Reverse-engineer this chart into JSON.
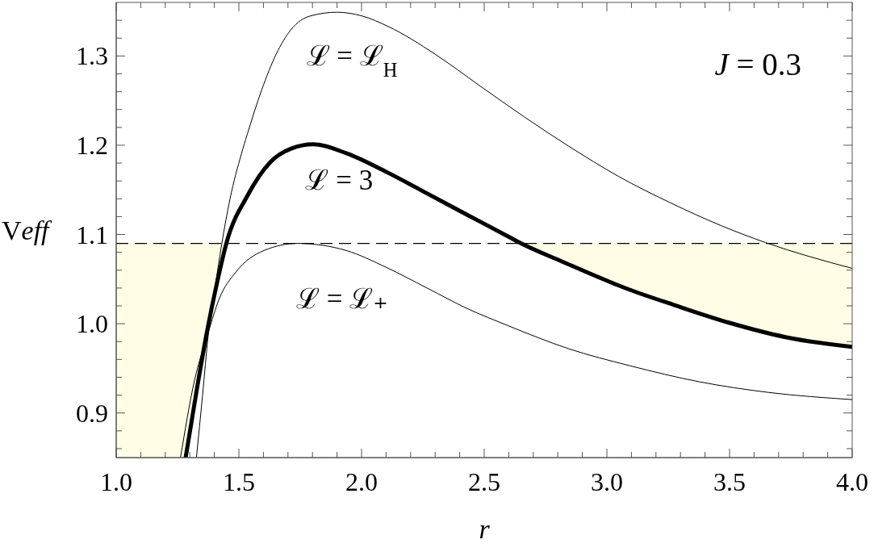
{
  "chart_data": {
    "type": "line",
    "xlabel": "r",
    "ylabel": "Veff",
    "annotations": [
      "J = 0.3"
    ],
    "xlim": [
      1,
      4
    ],
    "ylim": [
      0.85,
      1.36
    ],
    "xticks": [
      {
        "value": 1,
        "label": "1.0"
      },
      {
        "value": 1.1,
        "label": null
      },
      {
        "value": 1.2,
        "label": null
      },
      {
        "value": 1.3,
        "label": null
      },
      {
        "value": 1.4,
        "label": null
      },
      1.5,
      {
        "value": 1.6,
        "label": null
      },
      {
        "value": 1.7,
        "label": null
      },
      {
        "value": 1.8,
        "label": null
      },
      {
        "value": 1.9,
        "label": null
      },
      {
        "value": 2,
        "label": "2.0"
      },
      {
        "value": 2.1,
        "label": null
      },
      {
        "value": 2.2,
        "label": null
      },
      {
        "value": 2.3,
        "label": null
      },
      {
        "value": 2.4,
        "label": null
      },
      2.5,
      {
        "value": 2.6,
        "label": null
      },
      {
        "value": 2.7,
        "label": null
      },
      {
        "value": 2.8,
        "label": null
      },
      {
        "value": 2.9,
        "label": null
      },
      {
        "value": 3,
        "label": "3.0"
      },
      {
        "value": 3.1,
        "label": null
      },
      {
        "value": 3.2,
        "label": null
      },
      {
        "value": 3.3,
        "label": null
      },
      {
        "value": 3.4,
        "label": null
      },
      3.5,
      {
        "value": 3.6,
        "label": null
      },
      {
        "value": 3.7,
        "label": null
      },
      {
        "value": 3.8,
        "label": null
      },
      {
        "value": 3.9,
        "label": null
      },
      {
        "value": 4,
        "label": "4.0"
      }
    ],
    "yticks": [
      {
        "value": 0.86,
        "label": null
      },
      {
        "value": 0.88,
        "label": null
      },
      0.9,
      {
        "value": 0.92,
        "label": null
      },
      {
        "value": 0.94,
        "label": null
      },
      {
        "value": 0.96,
        "label": null
      },
      {
        "value": 0.98,
        "label": null
      },
      {
        "value": 1,
        "label": "1.0"
      },
      {
        "value": 1.02,
        "label": null
      },
      {
        "value": 1.04,
        "label": null
      },
      {
        "value": 1.06,
        "label": null
      },
      {
        "value": 1.08,
        "label": null
      },
      1.1,
      {
        "value": 1.12,
        "label": null
      },
      {
        "value": 1.14,
        "label": null
      },
      {
        "value": 1.16,
        "label": null
      },
      {
        "value": 1.18,
        "label": null
      },
      1.2,
      {
        "value": 1.22,
        "label": null
      },
      {
        "value": 1.24,
        "label": null
      },
      {
        "value": 1.26,
        "label": null
      },
      {
        "value": 1.28,
        "label": null
      },
      1.3,
      {
        "value": 1.32,
        "label": null
      },
      {
        "value": 1.34,
        "label": null
      }
    ],
    "marker": "none",
    "line_style": "solid",
    "ref_lines": [
      {
        "axis": "y",
        "value": 1.09,
        "color": "#000000",
        "line_style": "dashed"
      }
    ],
    "series": [
      {
        "type": "area",
        "color": "#fffde6",
        "x": [
          1,
          1.283,
          1.329,
          1.37,
          1.411,
          1.449
        ],
        "values": [
          null,
          null,
          null,
          null,
          null,
          null
        ],
        "lower": [
          0.85,
          0.85,
          0.927,
          0.991,
          1.046,
          1.09
        ],
        "upper": [
          1.09,
          1.09,
          1.09,
          1.09,
          1.09,
          1.09
        ]
      },
      {
        "type": "area",
        "color": "#fffde6",
        "x": [
          2.65,
          2.815,
          3.084,
          3.274,
          3.5,
          3.728,
          4
        ],
        "values": [
          null,
          null,
          null,
          null,
          null,
          null,
          null
        ],
        "lower": [
          1.09,
          1.07,
          1.039,
          1.021,
          1.001,
          0.985,
          0.974
        ],
        "upper": [
          1.09,
          1.09,
          1.09,
          1.09,
          1.09,
          1.09,
          1.09
        ]
      },
      {
        "name": "ℒ = ℒ$_{H}$",
        "color": "#000000",
        "x": [
          1.327,
          1.352,
          1.375,
          1.403,
          1.43,
          1.464,
          1.51,
          1.534,
          1.593,
          1.652,
          1.711,
          1.793,
          1.9,
          2.0,
          2.109,
          2.3,
          2.48,
          2.662,
          2.844,
          3.048,
          3.263,
          3.465,
          3.646,
          4
        ],
        "values": [
          0.85,
          0.92,
          0.987,
          1.041,
          1.089,
          1.14,
          1.19,
          1.212,
          1.262,
          1.302,
          1.329,
          1.345,
          1.349,
          1.345,
          1.333,
          1.302,
          1.267,
          1.232,
          1.199,
          1.165,
          1.135,
          1.11,
          1.091,
          1.062
        ]
      },
      {
        "name": "ℒ = 3",
        "color": "#000000",
        "x": [
          1.283,
          1.329,
          1.37,
          1.411,
          1.452,
          1.534,
          1.628,
          1.711,
          1.804,
          1.938,
          2.102,
          2.267,
          2.431,
          2.596,
          2.65,
          2.815,
          3.084,
          3.274,
          3.5,
          3.728,
          4
        ],
        "values": [
          0.85,
          0.927,
          0.991,
          1.046,
          1.093,
          1.143,
          1.181,
          1.196,
          1.201,
          1.191,
          1.17,
          1.146,
          1.122,
          1.098,
          1.09,
          1.07,
          1.039,
          1.021,
          1.001,
          0.985,
          0.974
        ]
      },
      {
        "name": "ℒ = ℒ₊",
        "color": "#000000",
        "x": [
          1.262,
          1.318,
          1.375,
          1.42,
          1.488,
          1.602,
          1.74,
          1.938,
          2.102,
          2.267,
          2.431,
          2.596,
          2.844,
          3.093,
          3.376,
          3.66,
          4
        ],
        "values": [
          0.85,
          0.935,
          0.99,
          1.028,
          1.058,
          1.082,
          1.09,
          1.082,
          1.063,
          1.04,
          1.017,
          0.998,
          0.972,
          0.953,
          0.935,
          0.923,
          0.915
        ]
      }
    ]
  }
}
